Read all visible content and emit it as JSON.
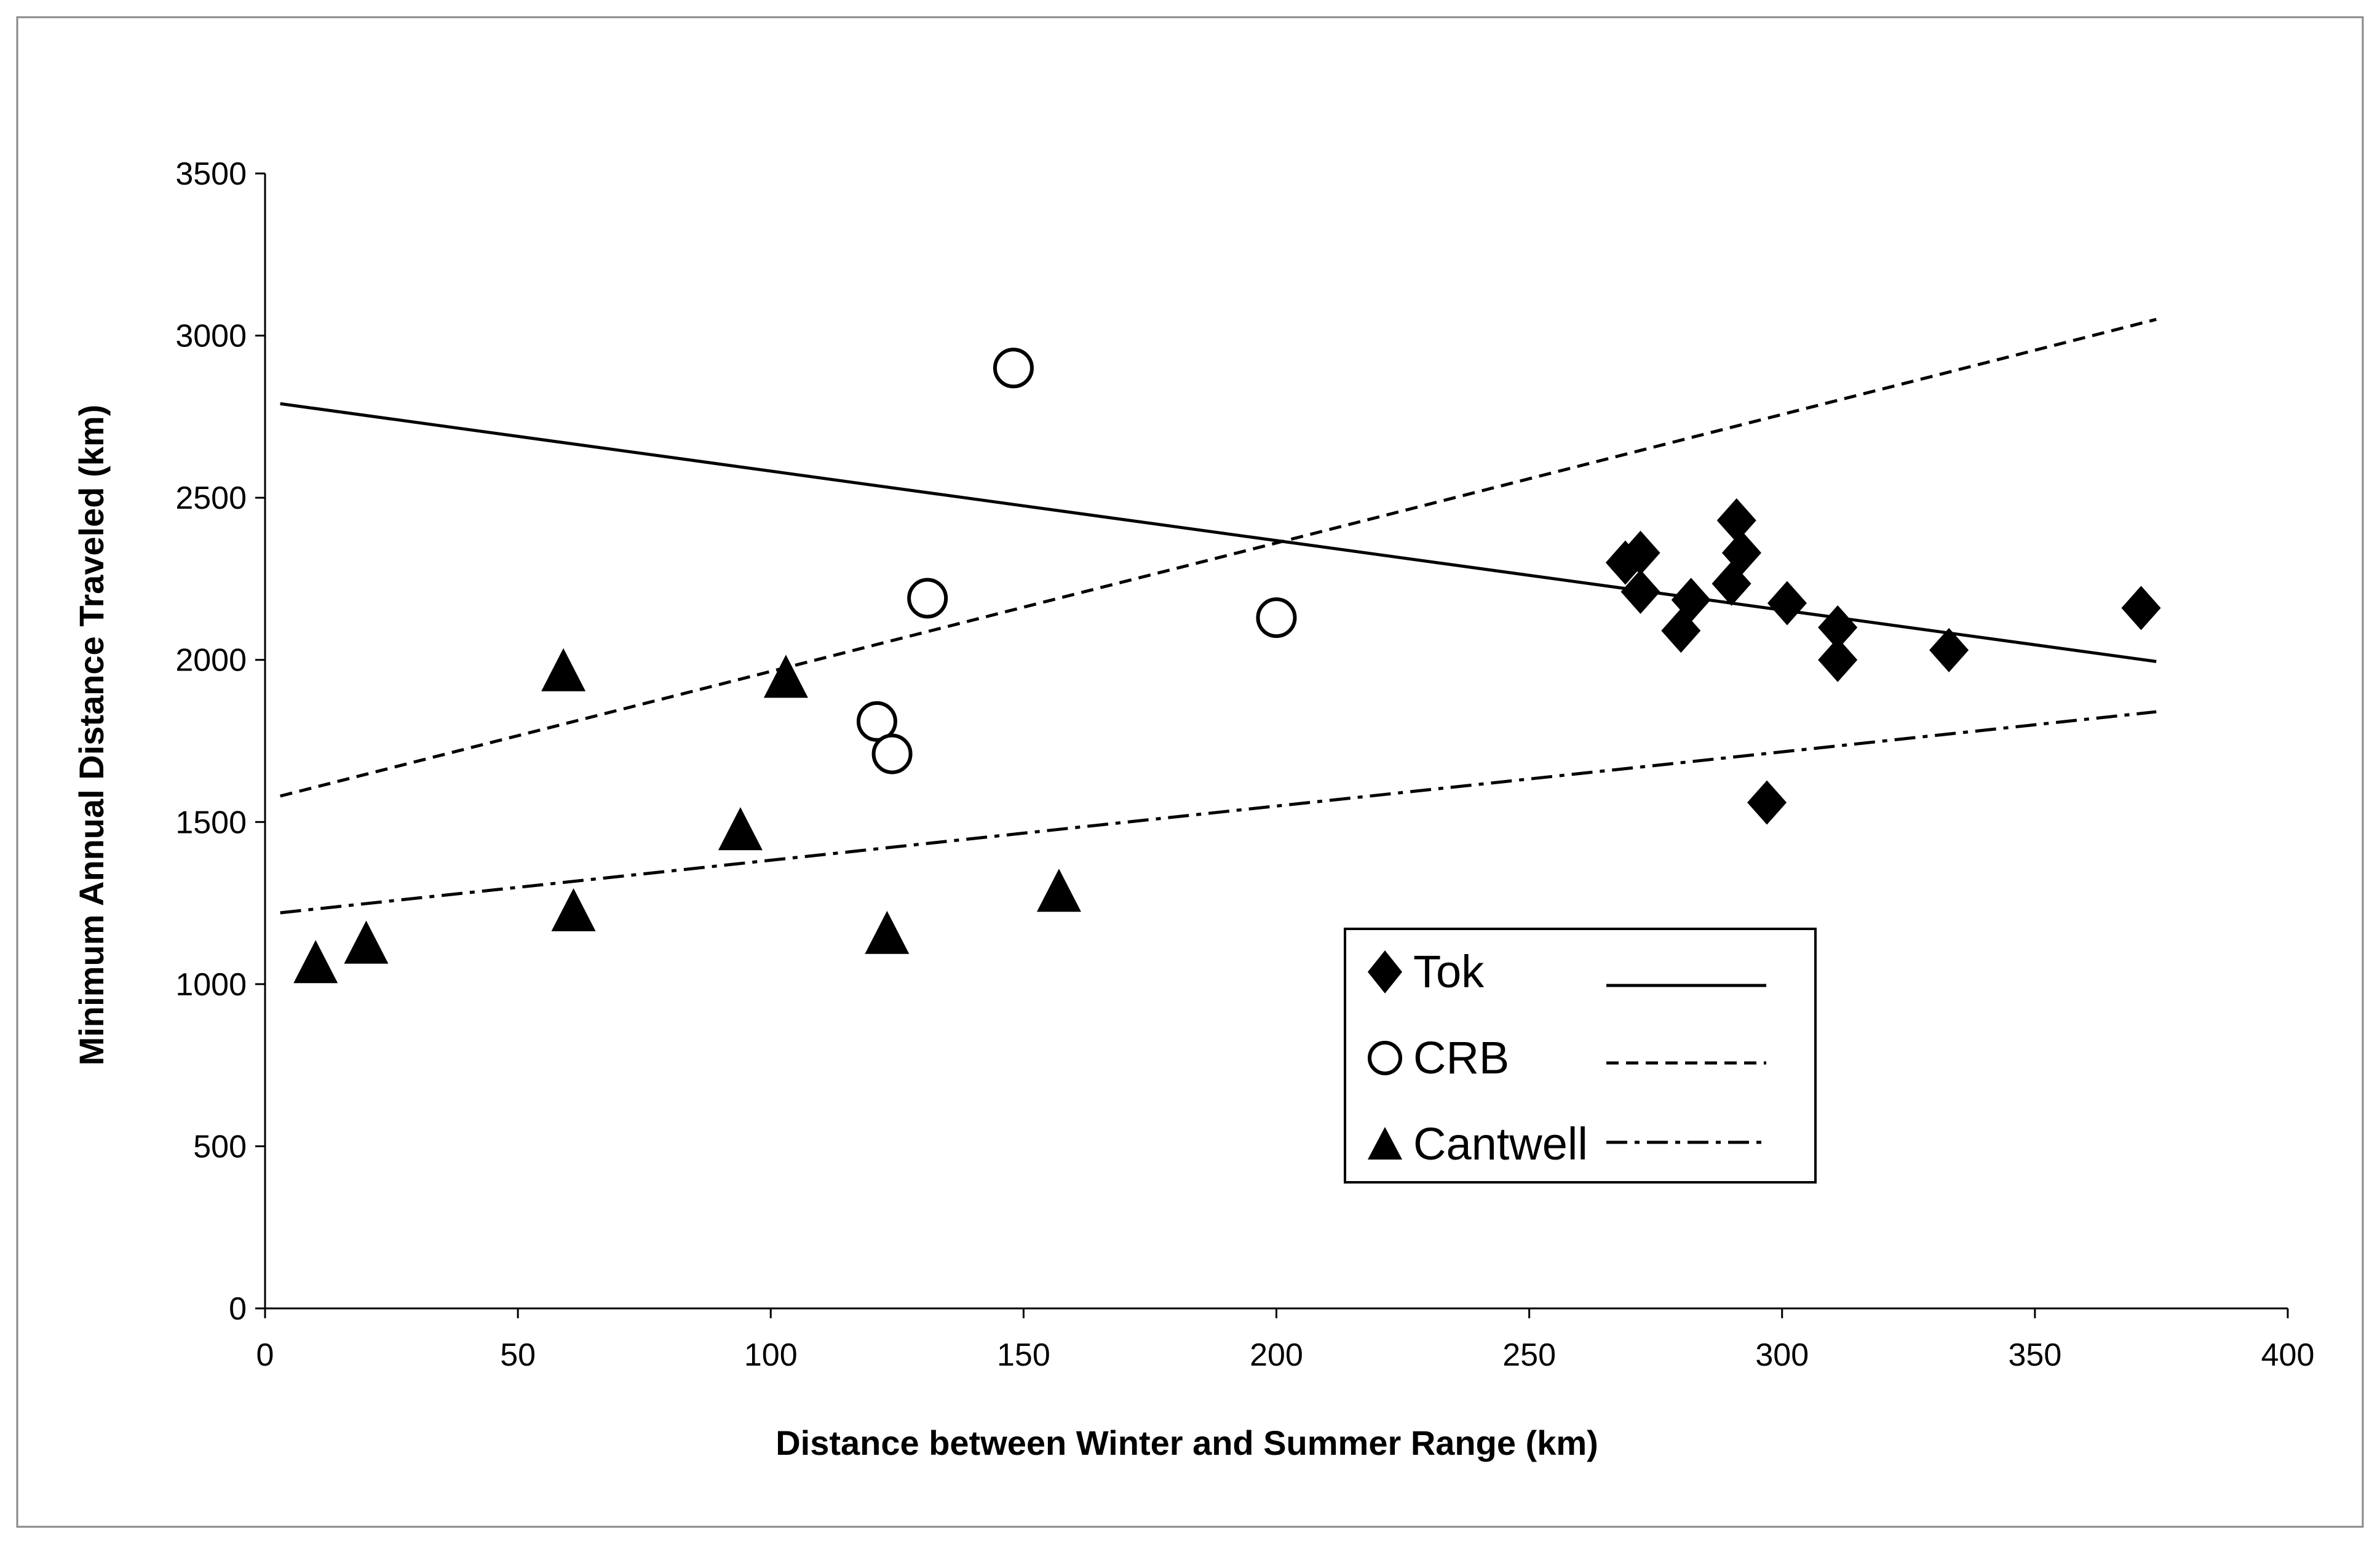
{
  "chart_data": {
    "type": "scatter",
    "title": "",
    "xlabel": "Distance between Winter and Summer Range (km)",
    "ylabel": "Minimum Annual Distance Traveled (km)",
    "xlim": [
      0,
      400
    ],
    "ylim": [
      0,
      3500
    ],
    "xticks": [
      0,
      50,
      100,
      150,
      200,
      250,
      300,
      350,
      400
    ],
    "yticks": [
      0,
      500,
      1000,
      1500,
      2000,
      2500,
      3000,
      3500
    ],
    "grid": false,
    "legend_position": "lower-right",
    "series": [
      {
        "name": "Tok",
        "marker": "diamond",
        "marker_fill": "#000000",
        "line_style": "solid",
        "trendline": {
          "x_start": 3,
          "y_start": 2790,
          "x_end": 374,
          "y_end": 1995
        },
        "points": [
          {
            "x": 269,
            "y": 2300
          },
          {
            "x": 272,
            "y": 2330
          },
          {
            "x": 272,
            "y": 2210
          },
          {
            "x": 280,
            "y": 2090
          },
          {
            "x": 282,
            "y": 2185
          },
          {
            "x": 290,
            "y": 2235
          },
          {
            "x": 291,
            "y": 2430
          },
          {
            "x": 292,
            "y": 2330
          },
          {
            "x": 297,
            "y": 1560
          },
          {
            "x": 301,
            "y": 2175
          },
          {
            "x": 311,
            "y": 2100
          },
          {
            "x": 311,
            "y": 2000
          },
          {
            "x": 333,
            "y": 2030
          },
          {
            "x": 371,
            "y": 2160
          }
        ]
      },
      {
        "name": "CRB",
        "marker": "circle",
        "marker_fill": "#ffffff",
        "line_style": "dashed",
        "trendline": {
          "x_start": 3,
          "y_start": 1580,
          "x_end": 374,
          "y_end": 3050
        },
        "points": [
          {
            "x": 121,
            "y": 1810
          },
          {
            "x": 124,
            "y": 1710
          },
          {
            "x": 131,
            "y": 2190
          },
          {
            "x": 148,
            "y": 2900
          },
          {
            "x": 200,
            "y": 2130
          }
        ]
      },
      {
        "name": "Cantwell",
        "marker": "triangle",
        "marker_fill": "#000000",
        "line_style": "dash-dot",
        "trendline": {
          "x_start": 3,
          "y_start": 1220,
          "x_end": 374,
          "y_end": 1840
        },
        "points": [
          {
            "x": 10,
            "y": 1060
          },
          {
            "x": 20,
            "y": 1120
          },
          {
            "x": 59,
            "y": 1960
          },
          {
            "x": 61,
            "y": 1220
          },
          {
            "x": 94,
            "y": 1470
          },
          {
            "x": 103,
            "y": 1940
          },
          {
            "x": 123,
            "y": 1150
          },
          {
            "x": 157,
            "y": 1280
          }
        ]
      }
    ]
  }
}
